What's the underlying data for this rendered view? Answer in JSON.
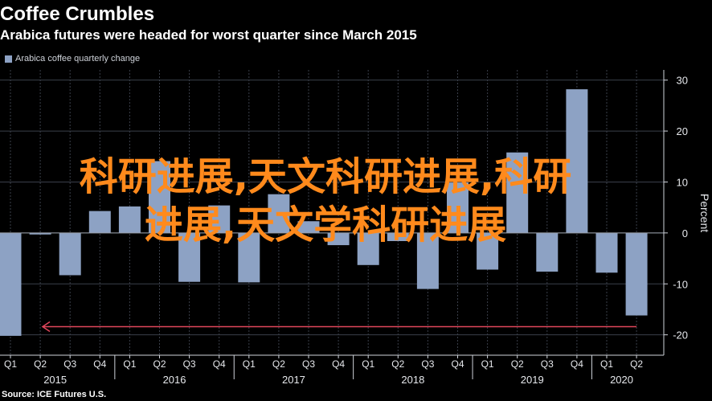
{
  "header": {
    "title": "Coffee Crumbles",
    "subtitle": "Arabica futures were headed for worst quarter since March 2015"
  },
  "legend": {
    "label": "Arabica coffee quarterly change",
    "color": "#8da2c4"
  },
  "source": "Source: ICE Futures U.S.",
  "overlay": {
    "line1": "科研进展,天文科研进展,科研",
    "line2": "进展,天文学科研进展"
  },
  "colors": {
    "bar": "#8da2c4",
    "grid": "#3a3f4a",
    "arrow": "#e0465b"
  },
  "chart_data": {
    "type": "bar",
    "categories": [
      "Q1",
      "Q2",
      "Q3",
      "Q4",
      "Q1",
      "Q2",
      "Q3",
      "Q4",
      "Q1",
      "Q2",
      "Q3",
      "Q4",
      "Q1",
      "Q2",
      "Q3",
      "Q4",
      "Q1",
      "Q2",
      "Q3",
      "Q4",
      "Q1",
      "Q2"
    ],
    "years": [
      {
        "label": "2015",
        "start": 0,
        "count": 4
      },
      {
        "label": "2016",
        "start": 4,
        "count": 4
      },
      {
        "label": "2017",
        "start": 8,
        "count": 4
      },
      {
        "label": "2018",
        "start": 12,
        "count": 4
      },
      {
        "label": "2019",
        "start": 16,
        "count": 4
      },
      {
        "label": "2020",
        "start": 20,
        "count": 2
      }
    ],
    "values": [
      -20.2,
      -0.3,
      -8.3,
      4.3,
      5.2,
      14.1,
      -9.6,
      5.4,
      -9.7,
      7.6,
      2.3,
      -2.4,
      -6.3,
      -1.6,
      -11.0,
      9.9,
      -7.2,
      15.8,
      -7.6,
      28.2,
      -7.8,
      -16.2
    ],
    "ylim": [
      -24,
      32
    ],
    "yticks": [
      -20,
      -10,
      0,
      10,
      20,
      30
    ],
    "ytick_labels": [
      "-20",
      "-10",
      "0",
      "10",
      "20",
      "30"
    ],
    "ylabel": "Percent",
    "axis_side": "right",
    "grid": true,
    "annotation": {
      "type": "arrow",
      "from_index": 21,
      "to_index": 0,
      "y": -18.4
    }
  }
}
